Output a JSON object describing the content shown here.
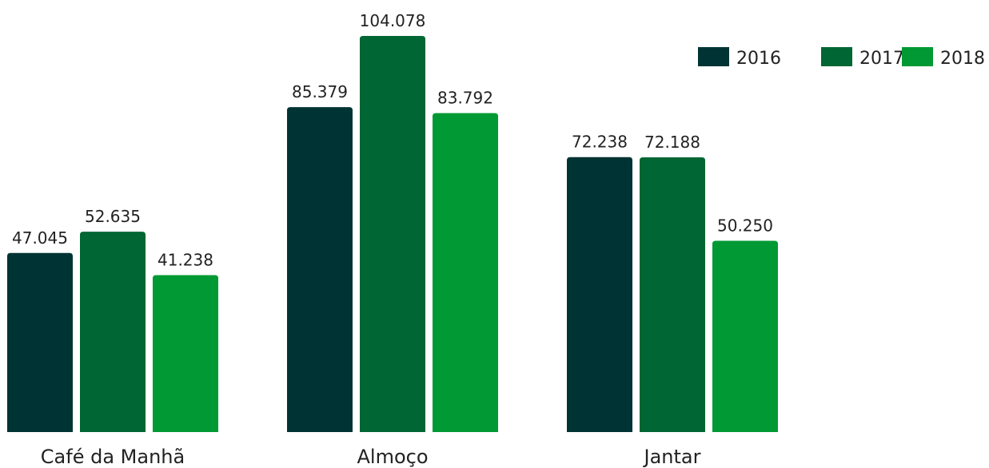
{
  "chart_data": {
    "type": "bar",
    "categories": [
      "Café da Manhã",
      "Almoço",
      "Jantar"
    ],
    "series": [
      {
        "name": "2016",
        "color": "#003333",
        "values": [
          47045,
          85379,
          72238
        ],
        "labels": [
          "47.045",
          "85.379",
          "72.238"
        ]
      },
      {
        "name": "2017",
        "color": "#006633",
        "values": [
          52635,
          104078,
          72188
        ],
        "labels": [
          "52.635",
          "104.078",
          "72.188"
        ]
      },
      {
        "name": "2018",
        "color": "#009933",
        "values": [
          41238,
          83792,
          50250
        ],
        "labels": [
          "41.238",
          "83.792",
          "50.250"
        ]
      }
    ],
    "legend_position": "top-right",
    "grid": false,
    "ylim": [
      0,
      104078
    ]
  }
}
